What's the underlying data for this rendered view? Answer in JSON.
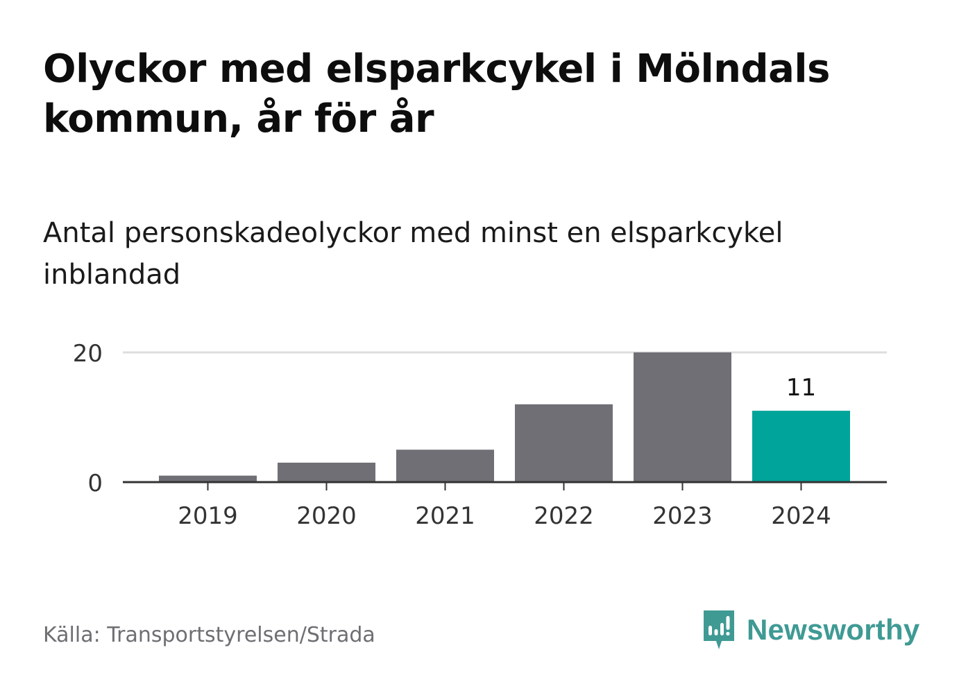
{
  "title": "Olyckor med elsparkcykel i Mölndals kommun, år för år",
  "subtitle": "Antal personskadeolyckor med minst en elsparkcykel inblandad",
  "source": "Källa: Transportstyrelsen/Strada",
  "brand": {
    "name": "Newsworthy",
    "icon": "newsworthy-logo-icon",
    "color": "#3f9a94"
  },
  "chart_data": {
    "type": "bar",
    "categories": [
      "2019",
      "2020",
      "2021",
      "2022",
      "2023",
      "2024"
    ],
    "values": [
      1,
      3,
      5,
      12,
      20,
      11
    ],
    "data_labels": [
      null,
      null,
      null,
      null,
      null,
      "11"
    ],
    "highlight_index": 5,
    "ylim": [
      0,
      20
    ],
    "yticks": [
      0,
      20
    ],
    "grid": true,
    "xlabel": "",
    "ylabel": "",
    "colors": {
      "bar": "#706f75",
      "highlight": "#00a49a",
      "gridline": "#dddddd",
      "axis": "#333333"
    }
  }
}
